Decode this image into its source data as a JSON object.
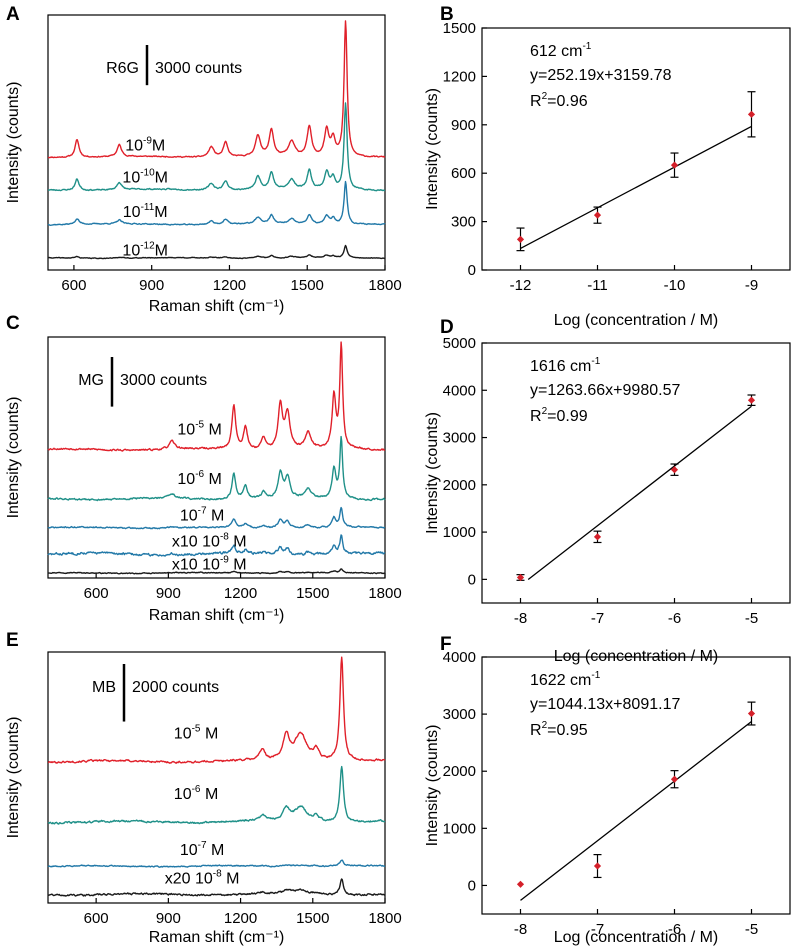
{
  "figure": {
    "panels": [
      "A",
      "B",
      "C",
      "D",
      "E",
      "F"
    ]
  },
  "chart_data": [
    {
      "panel": "A",
      "type": "line",
      "title": "",
      "xlabel": "Raman shift (cm⁻¹)",
      "ylabel": "Intensity (counts)",
      "xlim": [
        500,
        1800
      ],
      "xticks": [
        600,
        900,
        1200,
        1500,
        1800
      ],
      "analyte": "R6G",
      "scale_bar": {
        "label": "3000 counts",
        "value": 3000
      },
      "baselines": [
        8140,
        5690,
        3120,
        600
      ],
      "peaks": [
        [
          612,
          60,
          9
        ],
        [
          775,
          40,
          10
        ],
        [
          1130,
          35,
          12
        ],
        [
          1185,
          50,
          10
        ],
        [
          1310,
          70,
          12
        ],
        [
          1362,
          90,
          10
        ],
        [
          1440,
          50,
          14
        ],
        [
          1508,
          100,
          10
        ],
        [
          1575,
          90,
          10
        ],
        [
          1600,
          60,
          10
        ],
        [
          1648,
          460,
          7
        ]
      ],
      "series": [
        {
          "name": "10-9 M",
          "concentration_base": "10",
          "concentration_exp": "-9",
          "suffix": "M",
          "color": "#e0202a",
          "multiplier": "",
          "peak_scale": 22,
          "noise": 60,
          "seed": 11
        },
        {
          "name": "10-10 M",
          "concentration_base": "10",
          "concentration_exp": "-10",
          "suffix": "M",
          "color": "#1f9088",
          "multiplier": "",
          "peak_scale": 14,
          "noise": 70,
          "seed": 23
        },
        {
          "name": "10-11 M",
          "concentration_base": "10",
          "concentration_exp": "-11",
          "suffix": "M",
          "color": "#2279a8",
          "multiplier": "",
          "peak_scale": 7,
          "noise": 60,
          "seed": 37
        },
        {
          "name": "10-12 M",
          "concentration_base": "10",
          "concentration_exp": "-12",
          "suffix": "M",
          "color": "#1a1a1a",
          "multiplier": "",
          "peak_scale": 2,
          "noise": 40,
          "seed": 41
        }
      ]
    },
    {
      "panel": "B",
      "type": "scatter",
      "title": "",
      "xlabel": "Log (concentration / M)",
      "ylabel": "Intensity (counts)",
      "xlim": [
        -12.5,
        -8.5
      ],
      "ylim": [
        0,
        1500
      ],
      "xticks": [
        -12,
        -11,
        -10,
        -9
      ],
      "yticks": [
        0,
        300,
        600,
        900,
        1200,
        1500
      ],
      "points": [
        {
          "x": -12,
          "y": 190,
          "err": 70
        },
        {
          "x": -11,
          "y": 340,
          "err": 50
        },
        {
          "x": -10,
          "y": 650,
          "err": 75
        },
        {
          "x": -9,
          "y": 965,
          "err": 140
        }
      ],
      "fit": {
        "slope": 252.19,
        "intercept": 3159.78,
        "x": [
          -12,
          -9
        ]
      },
      "annotation": {
        "wavenumber": "612 cm",
        "wavenumber_sup": "-1",
        "equation": "y=252.19x+3159.78",
        "r_label": "R",
        "r_sup": "2",
        "r_value": "=0.96"
      }
    },
    {
      "panel": "C",
      "type": "line",
      "title": "",
      "xlabel": "Raman shift (cm⁻¹)",
      "ylabel": "Intensity (counts)",
      "xlim": [
        400,
        1800
      ],
      "xticks": [
        600,
        900,
        1200,
        1500,
        1800
      ],
      "analyte": "MG",
      "scale_bar": {
        "label": "3000 counts",
        "value": 3000
      },
      "baselines": [
        7470,
        4480,
        2740,
        1150,
        0
      ],
      "peaks": [
        [
          915,
          40,
          14
        ],
        [
          1172,
          220,
          9
        ],
        [
          1220,
          110,
          10
        ],
        [
          1295,
          60,
          10
        ],
        [
          1365,
          220,
          11
        ],
        [
          1395,
          180,
          12
        ],
        [
          1480,
          80,
          14
        ],
        [
          1588,
          260,
          9
        ],
        [
          1618,
          520,
          7
        ]
      ],
      "series": [
        {
          "name": "10-5 M",
          "concentration_base": "10",
          "concentration_exp": "-5",
          "suffix": " M",
          "color": "#e0202a",
          "multiplier": "",
          "peak_scale": 12,
          "noise": 80,
          "seed": 53
        },
        {
          "name": "10-6 M",
          "concentration_base": "10",
          "concentration_exp": "-6",
          "suffix": " M",
          "color": "#1f9088",
          "multiplier": "",
          "peak_scale": 7,
          "noise": 80,
          "seed": 61
        },
        {
          "name": "10-7 M",
          "concentration_base": "10",
          "concentration_exp": "-7",
          "suffix": " M",
          "color": "#2279a8",
          "multiplier": "",
          "peak_scale": 2.2,
          "noise": 60,
          "seed": 71
        },
        {
          "name": "x10 10-8 M",
          "concentration_base": "10",
          "concentration_exp": "-8",
          "suffix": " M",
          "color": "#2279a8",
          "multiplier": "x10 ",
          "peak_scale": 2,
          "noise": 110,
          "seed": 83
        },
        {
          "name": "x10 10-9 M",
          "concentration_base": "10",
          "concentration_exp": "-9",
          "suffix": " M",
          "color": "#1a1a1a",
          "multiplier": "x10 ",
          "peak_scale": 0.4,
          "noise": 40,
          "seed": 97
        }
      ]
    },
    {
      "panel": "D",
      "type": "scatter",
      "title": "",
      "xlabel": "Log (concentration / M)",
      "ylabel": "Intensity (counts)",
      "xlim": [
        -8.5,
        -4.5
      ],
      "ylim": [
        -500,
        5000
      ],
      "xticks": [
        -8,
        -7,
        -6,
        -5
      ],
      "yticks": [
        0,
        1000,
        2000,
        3000,
        4000,
        5000
      ],
      "points": [
        {
          "x": -8,
          "y": 40,
          "err": 60
        },
        {
          "x": -7,
          "y": 900,
          "err": 120
        },
        {
          "x": -6,
          "y": 2320,
          "err": 120
        },
        {
          "x": -5,
          "y": 3790,
          "err": 110
        }
      ],
      "fit": {
        "slope": 1263.66,
        "intercept": 9980.57,
        "x": [
          -7.9,
          -5
        ]
      },
      "annotation": {
        "wavenumber": "1616 cm",
        "wavenumber_sup": "-1",
        "equation": "y=1263.66x+9980.57",
        "r_label": "R",
        "r_sup": "2",
        "r_value": "=0.99"
      }
    },
    {
      "panel": "E",
      "type": "line",
      "title": "",
      "xlabel": "Raman shift (cm⁻¹)",
      "ylabel": "Intensity (counts)",
      "xlim": [
        400,
        1800
      ],
      "xticks": [
        600,
        900,
        1200,
        1500,
        1800
      ],
      "analyte": "MB",
      "scale_bar": {
        "label": "2000 counts",
        "value": 2000
      },
      "baselines": [
        4620,
        2520,
        980,
        0
      ],
      "peaks": [
        [
          1290,
          60,
          14
        ],
        [
          1390,
          140,
          16
        ],
        [
          1450,
          160,
          30
        ],
        [
          1515,
          60,
          14
        ],
        [
          1620,
          600,
          9
        ]
      ],
      "series": [
        {
          "name": "10-5 M",
          "concentration_base": "10",
          "concentration_exp": "-5",
          "suffix": " M",
          "color": "#e0202a",
          "multiplier": "",
          "peak_scale": 6,
          "noise": 50,
          "seed": 101
        },
        {
          "name": "10-6 M",
          "concentration_base": "10",
          "concentration_exp": "-6",
          "suffix": " M",
          "color": "#1f9088",
          "multiplier": "",
          "peak_scale": 3.2,
          "noise": 50,
          "seed": 113
        },
        {
          "name": "10-7 M",
          "concentration_base": "10",
          "concentration_exp": "-7",
          "suffix": " M",
          "color": "#2279a8",
          "multiplier": "",
          "peak_scale": 0.35,
          "noise": 30,
          "seed": 127
        },
        {
          "name": "x20 10-8 M",
          "concentration_base": "10",
          "concentration_exp": "-8",
          "suffix": " M",
          "color": "#1a1a1a",
          "multiplier": "x20 ",
          "peak_scale": 0.9,
          "noise": 45,
          "seed": 131
        }
      ]
    },
    {
      "panel": "F",
      "type": "scatter",
      "title": "",
      "xlabel": "Log (concentration / M)",
      "ylabel": "Intensity (counts)",
      "xlim": [
        -8.5,
        -4.5
      ],
      "ylim": [
        -500,
        4000
      ],
      "xticks": [
        -8,
        -7,
        -6,
        -5
      ],
      "yticks": [
        0,
        1000,
        2000,
        3000,
        4000
      ],
      "points": [
        {
          "x": -8,
          "y": 20,
          "err": 0
        },
        {
          "x": -7,
          "y": 340,
          "err": 200
        },
        {
          "x": -6,
          "y": 1860,
          "err": 150
        },
        {
          "x": -5,
          "y": 3010,
          "err": 200
        }
      ],
      "fit": {
        "slope": 1044.13,
        "intercept": 8091.17,
        "x": [
          -8,
          -5
        ]
      },
      "annotation": {
        "wavenumber": "1622 cm",
        "wavenumber_sup": "-1",
        "equation": "y=1044.13x+8091.17",
        "r_label": "R",
        "r_sup": "2",
        "r_value": "=0.95"
      }
    }
  ]
}
